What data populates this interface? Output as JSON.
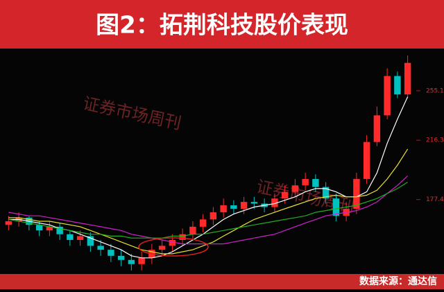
{
  "title": "图2：拓荆科技股价表现",
  "source": "数据来源：通达信",
  "watermark": "证券市场周刊",
  "chart_data": {
    "type": "candlestick",
    "log_scale": true,
    "ylim": [
      139,
      287
    ],
    "yticks": [
      177.4,
      216.3,
      255.1
    ],
    "up_color": "#ff2a2a",
    "down_color": "#00c0c0",
    "candles": {
      "open": [
        163,
        165,
        167,
        163,
        160,
        162,
        158,
        155,
        157,
        152,
        150,
        147,
        145,
        143,
        146,
        150,
        152,
        155,
        158,
        162,
        166,
        170,
        174,
        172,
        176,
        175,
        173,
        178,
        182,
        186,
        190,
        185,
        178,
        168,
        172,
        190,
        215,
        235,
        268,
        252
      ],
      "high": [
        168,
        170,
        168,
        165,
        165,
        164,
        160,
        160,
        159,
        155,
        153,
        150,
        148,
        149,
        153,
        155,
        158,
        161,
        165,
        169,
        173,
        178,
        177,
        179,
        179,
        178,
        181,
        186,
        190,
        194,
        193,
        188,
        181,
        176,
        194,
        220,
        242,
        275,
        272,
        287
      ],
      "low": [
        160,
        162,
        160,
        157,
        157,
        155,
        152,
        152,
        149,
        147,
        144,
        142,
        140,
        140,
        143,
        147,
        149,
        152,
        155,
        159,
        163,
        167,
        169,
        169,
        172,
        170,
        170,
        175,
        179,
        183,
        182,
        175,
        165,
        165,
        169,
        187,
        212,
        232,
        249,
        249
      ],
      "close": [
        165,
        167,
        163,
        160,
        162,
        158,
        155,
        157,
        152,
        150,
        147,
        145,
        143,
        146,
        150,
        152,
        155,
        158,
        162,
        166,
        170,
        174,
        172,
        176,
        175,
        173,
        178,
        182,
        186,
        190,
        185,
        178,
        168,
        172,
        190,
        215,
        235,
        268,
        252,
        280
      ]
    },
    "series": [
      {
        "color": "#ffffff",
        "values": [
          166,
          166,
          165,
          164,
          163,
          161,
          160,
          158,
          156,
          154,
          152,
          150,
          147,
          146,
          146,
          147,
          149,
          152,
          155,
          158,
          162,
          166,
          169,
          171,
          173,
          174,
          175,
          177,
          179,
          182,
          184,
          184,
          182,
          179,
          179,
          182,
          194,
          214,
          232,
          250
        ]
      },
      {
        "color": "#e8e030",
        "values": [
          167,
          167,
          166,
          165,
          165,
          164,
          163,
          162,
          160,
          158,
          156,
          154,
          152,
          150,
          149,
          148,
          148,
          149,
          150,
          152,
          154,
          157,
          160,
          163,
          166,
          168,
          170,
          172,
          174,
          176,
          178,
          179,
          180,
          179,
          179,
          180,
          183,
          190,
          199,
          210
        ]
      },
      {
        "color": "#d020d0",
        "values": [
          170,
          169,
          168,
          168,
          167,
          166,
          165,
          164,
          163,
          162,
          161,
          160,
          158,
          157,
          156,
          155,
          154,
          153,
          153,
          153,
          153,
          153,
          154,
          155,
          156,
          157,
          158,
          160,
          162,
          164,
          166,
          168,
          169,
          170,
          171,
          173,
          176,
          181,
          186,
          192
        ]
      },
      {
        "color": "#20b020",
        "values": [
          166,
          165,
          164,
          163,
          162,
          161,
          160,
          159,
          158,
          158,
          157,
          157,
          156,
          156,
          156,
          156,
          157,
          157,
          158,
          158,
          159,
          160,
          161,
          162,
          163,
          164,
          165,
          166,
          167,
          168,
          170,
          171,
          172,
          173,
          174,
          176,
          178,
          181,
          184,
          188
        ]
      }
    ]
  }
}
